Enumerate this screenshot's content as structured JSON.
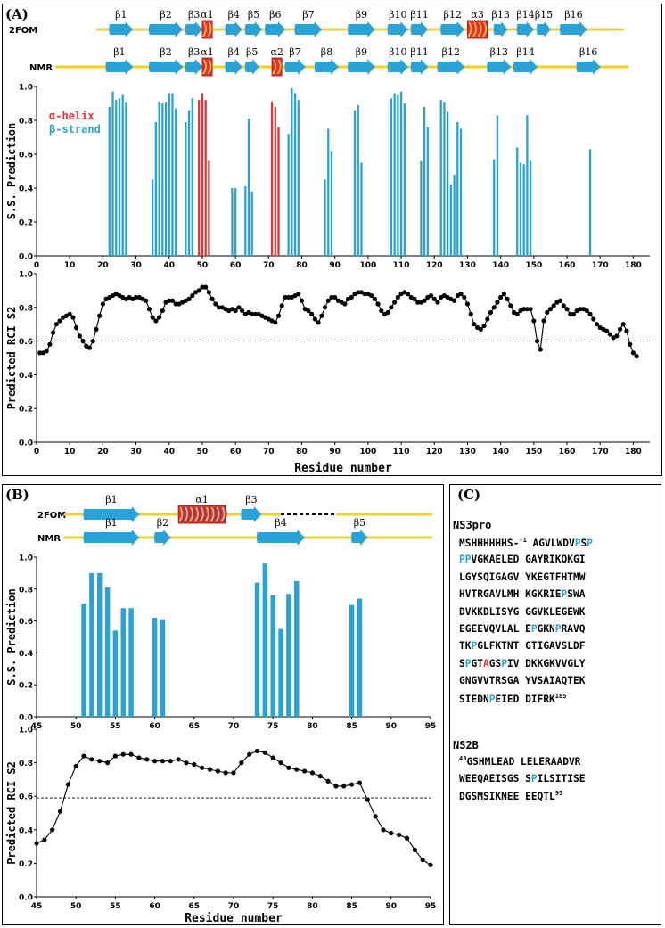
{
  "panel_labels": {
    "A": "(A)",
    "B": "(B)",
    "C": "(C)"
  },
  "track_labels": {
    "fom": "2FOM",
    "nmr": "NMR"
  },
  "legend": {
    "helix": "α-helix",
    "strand": "β-strand"
  },
  "colors": {
    "strand": "#29a3d7",
    "helix": "#e23232",
    "track": "#f7d21c",
    "line": "#000000"
  },
  "panelA": {
    "fom_elements": [
      {
        "type": "strand",
        "label": "β1",
        "start": 22,
        "end": 29
      },
      {
        "type": "strand",
        "label": "β2",
        "start": 34,
        "end": 44
      },
      {
        "type": "strand",
        "label": "β3",
        "start": 45,
        "end": 50
      },
      {
        "type": "helix",
        "label": "α1",
        "start": 50,
        "end": 53
      },
      {
        "type": "strand",
        "label": "β4",
        "start": 57,
        "end": 62
      },
      {
        "type": "strand",
        "label": "β5",
        "start": 63,
        "end": 68
      },
      {
        "type": "strand",
        "label": "β6",
        "start": 69,
        "end": 75
      },
      {
        "type": "strand",
        "label": "β7",
        "start": 78,
        "end": 86
      },
      {
        "type": "strand",
        "label": "β9",
        "start": 94,
        "end": 102
      },
      {
        "type": "strand",
        "label": "β10",
        "start": 106,
        "end": 112
      },
      {
        "type": "strand",
        "label": "β11",
        "start": 113,
        "end": 118
      },
      {
        "type": "strand",
        "label": "β12",
        "start": 122,
        "end": 129
      },
      {
        "type": "helix",
        "label": "α3",
        "start": 130,
        "end": 136
      },
      {
        "type": "strand",
        "label": "β13",
        "start": 138,
        "end": 142
      },
      {
        "type": "strand",
        "label": "β14",
        "start": 145,
        "end": 150
      },
      {
        "type": "strand",
        "label": "β15",
        "start": 151,
        "end": 155
      },
      {
        "type": "strand",
        "label": "β16",
        "start": 158,
        "end": 166
      }
    ],
    "nmr_elements": [
      {
        "type": "strand",
        "label": "β1",
        "start": 21,
        "end": 29
      },
      {
        "type": "strand",
        "label": "β2",
        "start": 34,
        "end": 44
      },
      {
        "type": "strand",
        "label": "β3",
        "start": 45,
        "end": 50
      },
      {
        "type": "helix",
        "label": "α1",
        "start": 50,
        "end": 53
      },
      {
        "type": "strand",
        "label": "β4",
        "start": 57,
        "end": 62
      },
      {
        "type": "strand",
        "label": "β5",
        "start": 63,
        "end": 67
      },
      {
        "type": "helix",
        "label": "α2",
        "start": 71,
        "end": 74
      },
      {
        "type": "strand",
        "label": "β7",
        "start": 75,
        "end": 81
      },
      {
        "type": "strand",
        "label": "β8",
        "start": 84,
        "end": 91
      },
      {
        "type": "strand",
        "label": "β9",
        "start": 94,
        "end": 102
      },
      {
        "type": "strand",
        "label": "β10",
        "start": 106,
        "end": 112
      },
      {
        "type": "strand",
        "label": "β11",
        "start": 113,
        "end": 118
      },
      {
        "type": "strand",
        "label": "β12",
        "start": 121,
        "end": 129
      },
      {
        "type": "strand",
        "label": "β13",
        "start": 136,
        "end": 143
      },
      {
        "type": "strand",
        "label": "β14",
        "start": 144,
        "end": 151
      },
      {
        "type": "strand",
        "label": "β16",
        "start": 163,
        "end": 170
      }
    ]
  },
  "panelB": {
    "fom_elements": [
      {
        "type": "strand",
        "label": "β1",
        "start": 51,
        "end": 58
      },
      {
        "type": "helix",
        "label": "α1",
        "start": 63,
        "end": 69
      },
      {
        "type": "strand",
        "label": "β3",
        "start": 71,
        "end": 73.5
      }
    ],
    "nmr_elements": [
      {
        "type": "strand",
        "label": "β1",
        "start": 51,
        "end": 58
      },
      {
        "type": "strand",
        "label": "β2",
        "start": 60,
        "end": 62
      },
      {
        "type": "strand",
        "label": "β4",
        "start": 73,
        "end": 79
      },
      {
        "type": "strand",
        "label": "β5",
        "start": 85,
        "end": 87
      }
    ],
    "gap": {
      "start": 76,
      "end": 83
    }
  },
  "chart_data": [
    {
      "type": "bar",
      "panel": "A",
      "ylabel": "S.S. Prediction",
      "xlim": [
        0,
        185
      ],
      "ylim": [
        0,
        1.0
      ],
      "xticks": [
        0,
        10,
        20,
        30,
        40,
        50,
        60,
        70,
        80,
        90,
        100,
        110,
        120,
        130,
        140,
        150,
        160,
        170,
        180
      ],
      "yticks": [
        "0.0",
        "0.2",
        "0.4",
        "0.6",
        "0.8",
        "1.0"
      ],
      "series": [
        {
          "name": "α-helix",
          "points": [
            [
              49,
              0.92
            ],
            [
              50,
              0.96
            ],
            [
              51,
              0.92
            ],
            [
              52,
              0.56
            ],
            [
              71,
              0.91
            ],
            [
              72,
              0.88
            ],
            [
              73,
              0.76
            ]
          ]
        },
        {
          "name": "β-strand",
          "points": [
            [
              22,
              0.88
            ],
            [
              23,
              0.97
            ],
            [
              24,
              0.92
            ],
            [
              25,
              0.93
            ],
            [
              26,
              0.95
            ],
            [
              27,
              0.91
            ],
            [
              35,
              0.45
            ],
            [
              36,
              0.79
            ],
            [
              37,
              0.91
            ],
            [
              38,
              0.9
            ],
            [
              39,
              0.91
            ],
            [
              40,
              0.96
            ],
            [
              41,
              0.96
            ],
            [
              42,
              0.87
            ],
            [
              45,
              0.79
            ],
            [
              46,
              0.86
            ],
            [
              47,
              0.93
            ],
            [
              59,
              0.4
            ],
            [
              60,
              0.4
            ],
            [
              63,
              0.41
            ],
            [
              64,
              0.81
            ],
            [
              65,
              0.38
            ],
            [
              76,
              0.72
            ],
            [
              77,
              0.99
            ],
            [
              78,
              0.96
            ],
            [
              79,
              0.92
            ],
            [
              87,
              0.45
            ],
            [
              88,
              0.75
            ],
            [
              89,
              0.62
            ],
            [
              96,
              0.86
            ],
            [
              97,
              0.89
            ],
            [
              98,
              0.55
            ],
            [
              107,
              0.93
            ],
            [
              108,
              0.96
            ],
            [
              109,
              0.95
            ],
            [
              110,
              0.97
            ],
            [
              111,
              0.9
            ],
            [
              116,
              0.56
            ],
            [
              117,
              0.88
            ],
            [
              118,
              0.76
            ],
            [
              122,
              0.92
            ],
            [
              123,
              0.91
            ],
            [
              124,
              0.85
            ],
            [
              125,
              0.42
            ],
            [
              126,
              0.48
            ],
            [
              127,
              0.79
            ],
            [
              128,
              0.75
            ],
            [
              138,
              0.57
            ],
            [
              139,
              0.83
            ],
            [
              145,
              0.64
            ],
            [
              146,
              0.55
            ],
            [
              147,
              0.54
            ],
            [
              148,
              0.83
            ],
            [
              149,
              0.56
            ],
            [
              167,
              0.63
            ]
          ]
        }
      ]
    },
    {
      "type": "line",
      "panel": "A",
      "xlabel": "Residue number",
      "ylabel": "Predicted RCI S2",
      "xlim": [
        0,
        185
      ],
      "ylim": [
        0,
        1.0
      ],
      "xticks": [
        0,
        10,
        20,
        30,
        40,
        50,
        60,
        70,
        80,
        90,
        100,
        110,
        120,
        130,
        140,
        150,
        160,
        170,
        180
      ],
      "yticks": [
        "0.0",
        "0.2",
        "0.4",
        "0.6",
        "0.8",
        "1.0"
      ],
      "threshold": 0.6,
      "x_start": 1,
      "values": [
        0.53,
        0.53,
        0.54,
        0.58,
        0.65,
        0.7,
        0.72,
        0.74,
        0.75,
        0.76,
        0.74,
        0.68,
        0.63,
        0.6,
        0.57,
        0.56,
        0.6,
        0.67,
        0.75,
        0.82,
        0.85,
        0.86,
        0.87,
        0.88,
        0.87,
        0.86,
        0.85,
        0.86,
        0.85,
        0.86,
        0.86,
        0.85,
        0.84,
        0.79,
        0.74,
        0.72,
        0.74,
        0.78,
        0.83,
        0.84,
        0.84,
        0.82,
        0.82,
        0.83,
        0.84,
        0.85,
        0.87,
        0.89,
        0.9,
        0.92,
        0.92,
        0.89,
        0.85,
        0.82,
        0.8,
        0.8,
        0.79,
        0.78,
        0.79,
        0.78,
        0.8,
        0.78,
        0.76,
        0.77,
        0.76,
        0.76,
        0.76,
        0.75,
        0.74,
        0.73,
        0.72,
        0.71,
        0.75,
        0.81,
        0.86,
        0.86,
        0.86,
        0.87,
        0.88,
        0.84,
        0.79,
        0.78,
        0.76,
        0.73,
        0.71,
        0.75,
        0.8,
        0.84,
        0.86,
        0.86,
        0.84,
        0.83,
        0.82,
        0.85,
        0.86,
        0.88,
        0.89,
        0.89,
        0.88,
        0.88,
        0.87,
        0.85,
        0.82,
        0.78,
        0.76,
        0.77,
        0.8,
        0.83,
        0.86,
        0.88,
        0.89,
        0.88,
        0.86,
        0.85,
        0.83,
        0.83,
        0.84,
        0.86,
        0.87,
        0.85,
        0.83,
        0.86,
        0.87,
        0.86,
        0.85,
        0.84,
        0.87,
        0.88,
        0.86,
        0.82,
        0.76,
        0.7,
        0.68,
        0.67,
        0.69,
        0.73,
        0.77,
        0.8,
        0.83,
        0.86,
        0.88,
        0.85,
        0.81,
        0.77,
        0.76,
        0.78,
        0.79,
        0.79,
        0.79,
        0.72,
        0.6,
        0.55,
        0.72,
        0.77,
        0.79,
        0.81,
        0.83,
        0.84,
        0.81,
        0.79,
        0.76,
        0.76,
        0.78,
        0.79,
        0.79,
        0.78,
        0.76,
        0.73,
        0.7,
        0.68,
        0.67,
        0.66,
        0.64,
        0.62,
        0.63,
        0.67,
        0.7,
        0.66,
        0.58,
        0.53,
        0.51
      ]
    },
    {
      "type": "bar",
      "panel": "B",
      "ylabel": "S.S. Prediction",
      "xlim": [
        45,
        95
      ],
      "ylim": [
        0,
        1.0
      ],
      "xticks": [
        45,
        50,
        55,
        60,
        65,
        70,
        75,
        80,
        85,
        90,
        95
      ],
      "yticks": [
        "0.0",
        "0.2",
        "0.4",
        "0.6",
        "0.8",
        "1.0"
      ],
      "series": [
        {
          "name": "β-strand",
          "points": [
            [
              51,
              0.71
            ],
            [
              52,
              0.9
            ],
            [
              53,
              0.9
            ],
            [
              54,
              0.81
            ],
            [
              55,
              0.54
            ],
            [
              56,
              0.68
            ],
            [
              57,
              0.68
            ],
            [
              60,
              0.62
            ],
            [
              61,
              0.61
            ],
            [
              73,
              0.84
            ],
            [
              74,
              0.96
            ],
            [
              75,
              0.76
            ],
            [
              76,
              0.55
            ],
            [
              77,
              0.77
            ],
            [
              78,
              0.85
            ],
            [
              85,
              0.7
            ],
            [
              86,
              0.74
            ]
          ]
        }
      ]
    },
    {
      "type": "line",
      "panel": "B",
      "xlabel": "Residue number",
      "ylabel": "Predicted RCI S2",
      "xlim": [
        45,
        95
      ],
      "ylim": [
        0,
        1.0
      ],
      "xticks": [
        45,
        50,
        55,
        60,
        65,
        70,
        75,
        80,
        85,
        90,
        95
      ],
      "yticks": [
        "0.0",
        "0.2",
        "0.4",
        "0.6",
        "0.8",
        "1.0"
      ],
      "threshold": 0.59,
      "x_start": 45,
      "values": [
        0.32,
        0.34,
        0.4,
        0.51,
        0.67,
        0.78,
        0.84,
        0.82,
        0.81,
        0.8,
        0.84,
        0.85,
        0.85,
        0.83,
        0.82,
        0.81,
        0.81,
        0.81,
        0.82,
        0.8,
        0.79,
        0.77,
        0.76,
        0.75,
        0.74,
        0.74,
        0.8,
        0.85,
        0.87,
        0.86,
        0.83,
        0.8,
        0.77,
        0.76,
        0.75,
        0.74,
        0.72,
        0.69,
        0.66,
        0.66,
        0.67,
        0.68,
        0.58,
        0.48,
        0.4,
        0.38,
        0.37,
        0.35,
        0.28,
        0.22,
        0.19
      ]
    }
  ],
  "sequence": {
    "ns3_title": "NS3pro",
    "ns2b_title": "NS2B",
    "ns3_lines": [
      [
        [
          "MSHHHHHHS-",
          ""
        ],
        [
          "-1",
          "sup"
        ],
        [
          " AGVLWDV",
          ""
        ],
        [
          "P",
          "b"
        ],
        [
          "S",
          ""
        ],
        [
          "P",
          "b"
        ]
      ],
      [
        [
          "PP",
          "b"
        ],
        [
          "VGKAELED GAYRIKQKGI",
          ""
        ]
      ],
      [
        [
          "LGYSQIGAGV YKEGTFHTMW",
          ""
        ]
      ],
      [
        [
          "HVTRGAVLMH KGKRIE",
          ""
        ],
        [
          "P",
          "b"
        ],
        [
          "SWA",
          ""
        ]
      ],
      [
        [
          "DVKKDLISYG GGVKLEGEWK",
          ""
        ]
      ],
      [
        [
          "EGEEVQVLAL E",
          ""
        ],
        [
          "P",
          "b"
        ],
        [
          "GKN",
          ""
        ],
        [
          "P",
          "b"
        ],
        [
          "RAVQ",
          ""
        ]
      ],
      [
        [
          "TK",
          ""
        ],
        [
          "P",
          "b"
        ],
        [
          "GLFKTNT GTIGAVSLDF",
          ""
        ]
      ],
      [
        [
          "S",
          ""
        ],
        [
          "P",
          "b"
        ],
        [
          "GT",
          ""
        ],
        [
          "A",
          "r"
        ],
        [
          "GS",
          ""
        ],
        [
          "P",
          "b"
        ],
        [
          "IV DKKGKVVGLY",
          ""
        ]
      ],
      [
        [
          "GNGVVTRSGA YVSAIAQTEK",
          ""
        ]
      ],
      [
        [
          "SIEDN",
          ""
        ],
        [
          "P",
          "b"
        ],
        [
          "EIED DIFRK",
          ""
        ],
        [
          "185",
          "sup"
        ]
      ]
    ],
    "ns2b_lines": [
      [
        [
          "43",
          "sup"
        ],
        [
          "GSHMLEAD LELERAADVR",
          ""
        ]
      ],
      [
        [
          "WEEQAEISGS S",
          ""
        ],
        [
          "P",
          "b"
        ],
        [
          "ILSITISE",
          ""
        ]
      ],
      [
        [
          "DGSMSIKNEE EEQTL",
          ""
        ],
        [
          "95",
          "sup"
        ]
      ]
    ]
  }
}
